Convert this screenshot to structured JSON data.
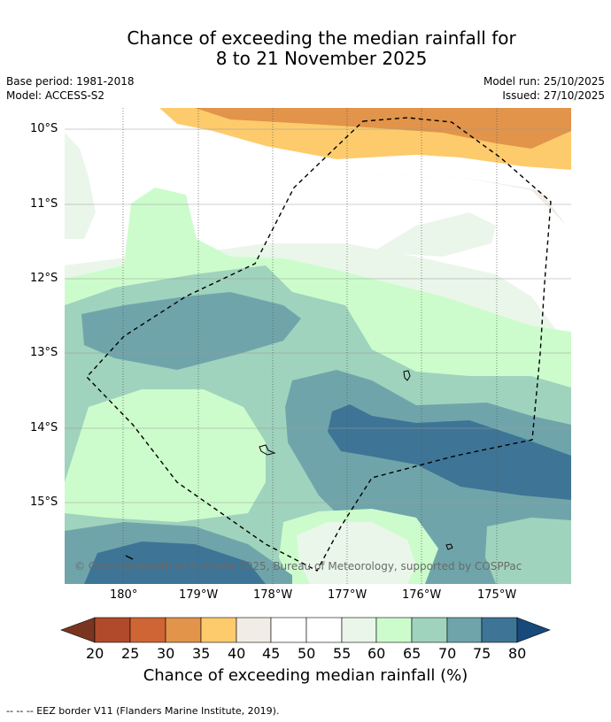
{
  "title_line1": "Chance of exceeding the median rainfall for",
  "title_line2": "8 to 21 November 2025",
  "base_period": "Base period: 1981-2018",
  "model": "Model: ACCESS-S2",
  "model_run": "Model run: 25/10/2025",
  "issued": "Issued: 27/10/2025",
  "lat_labels": [
    "10°S",
    "11°S",
    "12°S",
    "13°S",
    "14°S",
    "15°S"
  ],
  "lon_labels": [
    "180°",
    "179°W",
    "178°W",
    "177°W",
    "176°W",
    "175°W"
  ],
  "colorbar": {
    "ticks": [
      "20",
      "25",
      "30",
      "35",
      "40",
      "45",
      "50",
      "55",
      "60",
      "65",
      "70",
      "75",
      "80"
    ],
    "title": "Chance of exceeding median rainfall (%)",
    "colors": [
      "#7a3520",
      "#b04a2b",
      "#cf6535",
      "#e1944a",
      "#fdcb6c",
      "#f2ece6",
      "#ffffff",
      "#ffffff",
      "#eaf6ea",
      "#ccfccc",
      "#9fd3bd",
      "#6fa5aa",
      "#3e7596",
      "#17497a"
    ]
  },
  "credit": "© Commonwealth of Australia 2025, Bureau of Meteorology, supported by COSPPac",
  "footer": "--  --  -- EEZ border V11 (Flanders Marine Institute, 2019)."
}
